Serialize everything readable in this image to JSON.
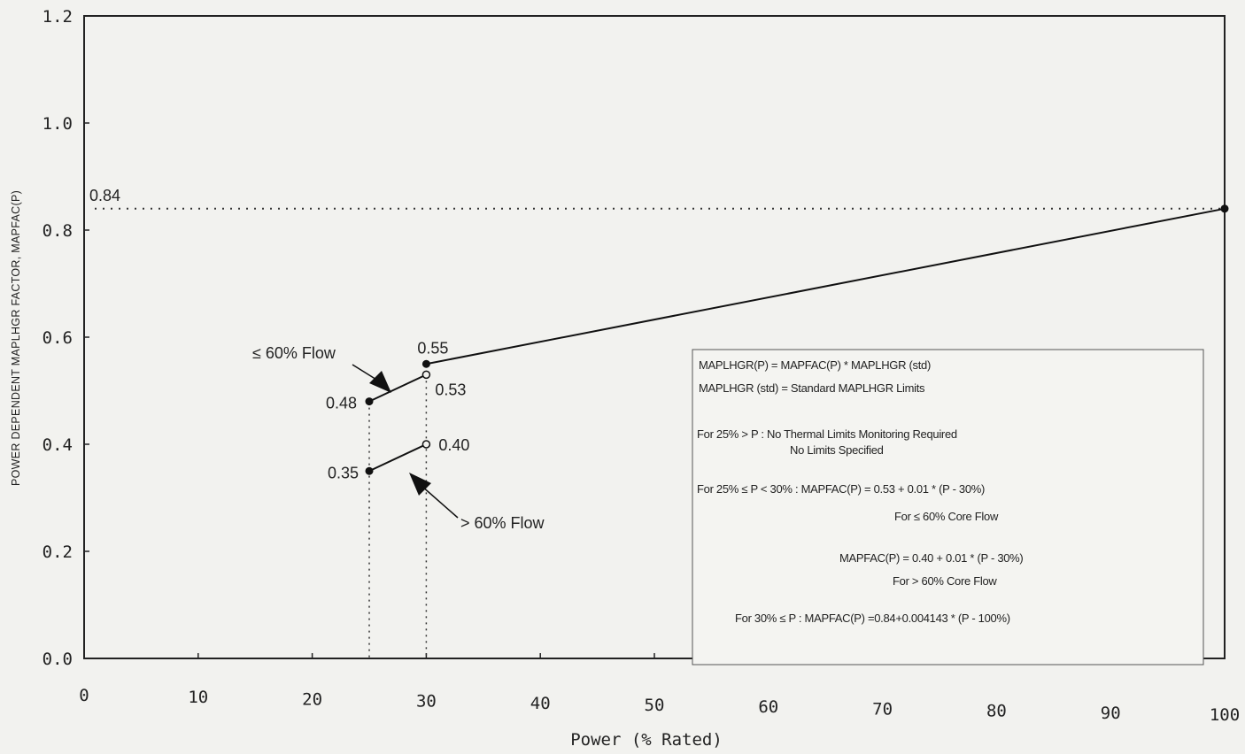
{
  "chart_data": {
    "type": "line",
    "xlabel": "Power (% Rated)",
    "ylabel": "POWER DEPENDENT MAPLHGR FACTOR, MAPFAC(P)",
    "xlim": [
      0,
      100
    ],
    "ylim": [
      0,
      1.2
    ],
    "x_ticks": [
      "0",
      "10",
      "20",
      "30",
      "40",
      "50",
      "60",
      "70",
      "80",
      "90",
      "100"
    ],
    "y_ticks": [
      "0.0",
      "0.2",
      "0.4",
      "0.6",
      "0.8",
      "1.0",
      "1.2"
    ],
    "grid": false,
    "series": [
      {
        "name": "≤ 60% Flow",
        "x": [
          25,
          30
        ],
        "y": [
          0.48,
          0.53
        ]
      },
      {
        "name": "> 60% Flow",
        "x": [
          25,
          30
        ],
        "y": [
          0.35,
          0.4
        ]
      },
      {
        "x": [
          30,
          100
        ],
        "y": [
          0.55,
          0.84
        ]
      }
    ],
    "reference_line": {
      "y": 0.84
    },
    "data_labels": {
      "v084": "0.84",
      "v055": "0.55",
      "v053": "0.53",
      "v048": "0.48",
      "v040": "0.40",
      "v035": "0.35"
    },
    "annotations": {
      "low_flow": "≤ 60% Flow",
      "high_flow": "> 60% Flow"
    },
    "legend_box": {
      "lines": [
        "MAPLHGR(P) = MAPFAC(P) * MAPLHGR (std)",
        "MAPLHGR (std) = Standard MAPLHGR Limits",
        "For 25% > P : No Thermal Limits Monitoring Required",
        "No Limits Specified",
        "For 25% ≤ P < 30% : MAPFAC(P) = 0.53 + 0.01 * (P - 30%)",
        "For ≤ 60% Core Flow",
        "MAPFAC(P) = 0.40 + 0.01 * (P - 30%)",
        "For > 60% Core Flow",
        "For 30% ≤ P : MAPFAC(P) =0.84+0.004143 * (P - 100%)"
      ]
    }
  }
}
